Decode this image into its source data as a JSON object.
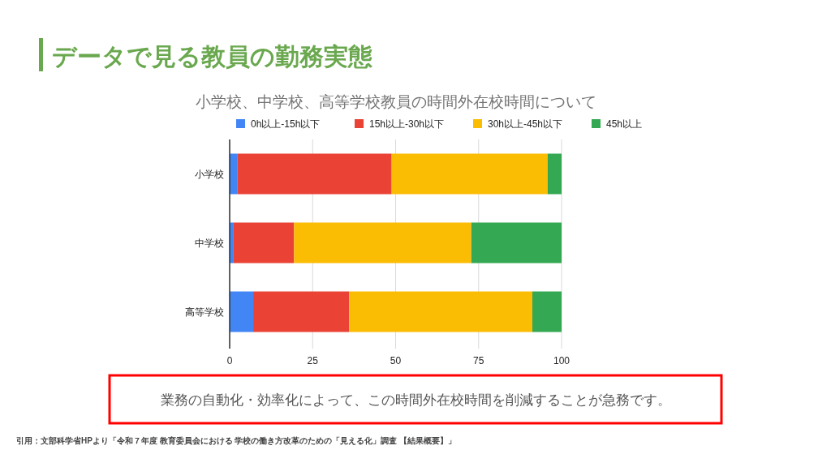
{
  "chart_data": {
    "type": "bar",
    "orientation": "horizontal",
    "stacked": true,
    "title": "データで見る教員の勤務実態",
    "subtitle": "小学校、中学校、高等学校教員の時間外在校時間について",
    "categories": [
      "小学校",
      "中学校",
      "高等学校"
    ],
    "series": [
      {
        "name": "0h以上-15h以下",
        "color": "#4285f4",
        "values": [
          2.4,
          1.2,
          7.1
        ]
      },
      {
        "name": "15h以上-30h以下",
        "color": "#ea4335",
        "values": [
          46.4,
          18.2,
          28.9
        ]
      },
      {
        "name": "30h以上-45h以下",
        "color": "#fbbc04",
        "values": [
          47.0,
          53.4,
          55.2
        ]
      },
      {
        "name": "45h以上",
        "color": "#34a853",
        "values": [
          4.2,
          27.2,
          8.8
        ]
      }
    ],
    "xlim": [
      0,
      100
    ],
    "xticks": [
      0,
      25,
      50,
      75,
      100
    ],
    "grid": "x",
    "legend": "top",
    "annotations": [
      "業務の自動化・効率化によって、この時間外在校時間を削減することが急務です。",
      "引用：文部科学省HPより「令和７年度 教育委員会における 学校の働き方改革のための「見える化」調査 【結果概要】」"
    ]
  }
}
